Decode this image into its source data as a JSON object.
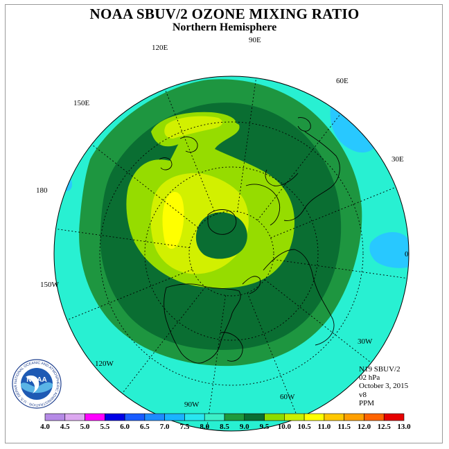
{
  "title": "NOAA SBUV/2 OZONE MIXING RATIO",
  "subtitle": "Northern Hemisphere",
  "longitude_labels": [
    "90E",
    "60E",
    "30E",
    "0",
    "30W",
    "60W",
    "90W",
    "120W",
    "150W",
    "180",
    "150E",
    "120E"
  ],
  "info": {
    "instrument": "N19 SBUV/2",
    "pressure": "02 hPa",
    "date": "October 3, 2015",
    "version": "v8",
    "units": "PPM"
  },
  "colorbar": {
    "ticks": [
      "4.0",
      "4.5",
      "5.0",
      "5.5",
      "6.0",
      "6.5",
      "7.0",
      "7.5",
      "8.0",
      "8.5",
      "9.0",
      "9.5",
      "10.0",
      "10.5",
      "11.0",
      "11.5",
      "12.0",
      "12.5",
      "13.0"
    ],
    "colors": [
      "#b58ae6",
      "#dca8f0",
      "#ff00ff",
      "#0000e6",
      "#1a5cff",
      "#1e8cff",
      "#1ab4ff",
      "#28e6f0",
      "#3cf0c8",
      "#1e9a3c",
      "#0a6e32",
      "#8cdc00",
      "#c8f000",
      "#ffff00",
      "#ffc800",
      "#ffa000",
      "#ff6400",
      "#e60000",
      "#8c5028"
    ]
  },
  "logo": {
    "text": "NOAA",
    "ring_text": "NATIONAL OCEANIC AND ATMOSPHERIC ADMINISTRATION · U.S. DEPARTMENT OF COMMERCE"
  },
  "colors": {
    "cyan": "#28f0d2",
    "light_blue": "#28c8ff",
    "mid_green": "#1e9640",
    "dark_green": "#0a6e32",
    "light_green": "#96dc00",
    "yellow_green": "#d2f000",
    "yellow": "#ffff00"
  }
}
